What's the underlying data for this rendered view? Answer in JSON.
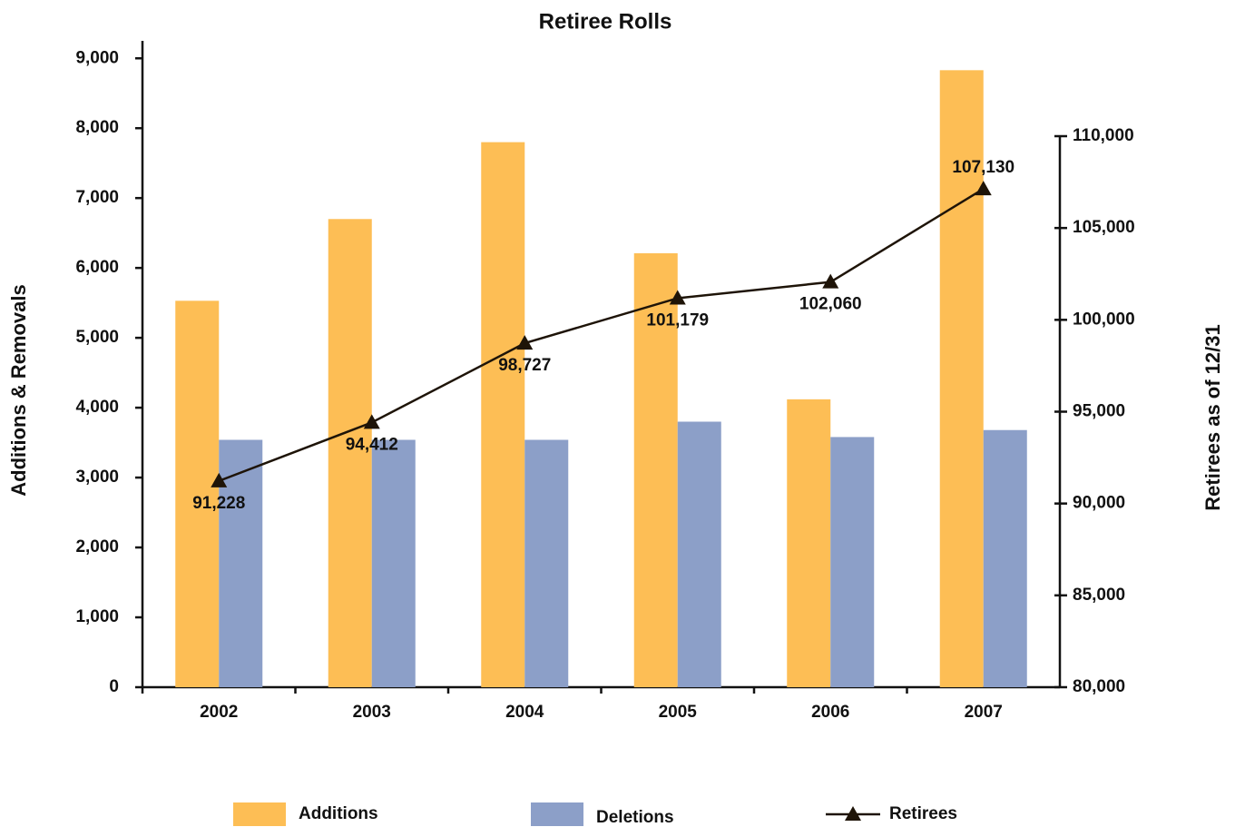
{
  "chart_data": {
    "type": "bar_line",
    "title": "Retiree Rolls",
    "categories": [
      "2002",
      "2003",
      "2004",
      "2005",
      "2006",
      "2007"
    ],
    "y_label": "Additions & Removals",
    "y2_label": "Retirees as of 12/31",
    "ylim": [
      0,
      9250
    ],
    "yticks": [
      0,
      {
        "value": 1000,
        "label": "1,000"
      },
      {
        "value": 2000,
        "label": "2,000"
      },
      {
        "value": 3000,
        "label": "3,000"
      },
      {
        "value": 4000,
        "label": "4,000"
      },
      {
        "value": 5000,
        "label": "5,000"
      },
      {
        "value": 6000,
        "label": "6,000"
      },
      {
        "value": 7000,
        "label": "7,000"
      },
      {
        "value": 8000,
        "label": "8,000"
      },
      {
        "value": 9000,
        "label": "9,000"
      }
    ],
    "y2lim": [
      80000,
      110000
    ],
    "y2ticks": [
      {
        "value": 80000,
        "label": "80,000"
      },
      {
        "value": 85000,
        "label": "85,000"
      },
      {
        "value": 90000,
        "label": "90,000"
      },
      {
        "value": 95000,
        "label": "95,000"
      },
      {
        "value": 100000,
        "label": "100,000"
      },
      {
        "value": 105000,
        "label": "105,000"
      },
      {
        "value": 110000,
        "label": "110,000"
      }
    ],
    "series": [
      {
        "name": "Additions",
        "color": "#fdbe55",
        "kind": "bar",
        "values": [
          5530,
          6700,
          7800,
          6210,
          4120,
          8830
        ]
      },
      {
        "name": "Deletions",
        "color": "#8c9fc8",
        "kind": "bar",
        "values": [
          3540,
          3540,
          3540,
          3800,
          3580,
          3680
        ]
      },
      {
        "name": "Retirees",
        "color": "#1e1408",
        "kind": "line",
        "axis": "y2",
        "values": [
          91228,
          94412,
          98727,
          101179,
          102060,
          107130
        ],
        "value_labels": [
          "91,228",
          "94,412",
          "98,727",
          "101,179",
          "102,060",
          "107,130"
        ]
      }
    ]
  }
}
